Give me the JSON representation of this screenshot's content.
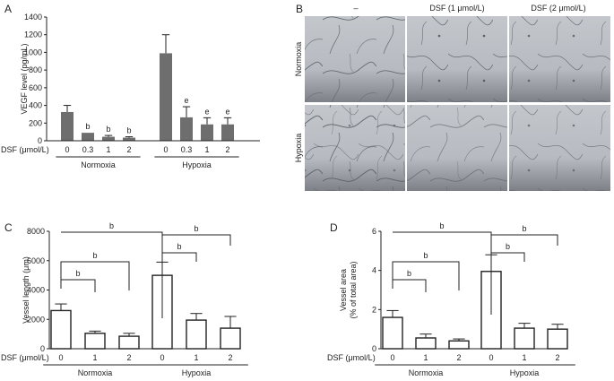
{
  "panels": {
    "A": {
      "letter": "A"
    },
    "B": {
      "letter": "B"
    },
    "C": {
      "letter": "C"
    },
    "D": {
      "letter": "D"
    }
  },
  "micrographs": {
    "columns": [
      "–",
      "DSF (1 μmol/L)",
      "DSF (2 μmol/L)"
    ],
    "rows": [
      "Normoxia",
      "Hypoxia"
    ]
  },
  "chart_data": [
    {
      "id": "A",
      "type": "bar",
      "ylabel": "VEGF level (pg/mL)",
      "ylim": [
        0,
        1400
      ],
      "yticks": [
        0,
        200,
        400,
        600,
        800,
        1000,
        1200,
        1400
      ],
      "x_prefix_label": "DSF (μmol/L)",
      "categories": [
        "0",
        "0.3",
        "1",
        "2",
        "0",
        "0.3",
        "1",
        "2"
      ],
      "groups": [
        "Normoxia",
        "Hypoxia"
      ],
      "values": [
        325,
        90,
        45,
        35,
        990,
        265,
        185,
        185
      ],
      "errors": [
        75,
        0,
        15,
        10,
        210,
        120,
        75,
        75
      ],
      "labels": [
        "",
        "b",
        "b",
        "b",
        "",
        "e",
        "e",
        "e"
      ],
      "bar_color": "#6e6e6e",
      "filled": true
    },
    {
      "id": "C",
      "type": "bar",
      "ylabel": "Vessel length (μm)",
      "ylim": [
        0,
        8000
      ],
      "yticks": [
        0,
        2000,
        4000,
        6000,
        8000
      ],
      "x_prefix_label": "DSF (μmol/L)",
      "categories": [
        "0",
        "1",
        "2",
        "0",
        "1",
        "2"
      ],
      "groups": [
        "Normoxia",
        "Hypoxia"
      ],
      "values": [
        2600,
        1050,
        850,
        5000,
        1950,
        1400
      ],
      "errors": [
        450,
        150,
        200,
        900,
        450,
        800
      ],
      "filled": false,
      "brackets": [
        {
          "from": 0,
          "to": 3,
          "label": "b"
        },
        {
          "from": 0,
          "to": 2,
          "label": "b"
        },
        {
          "from": 0,
          "to": 1,
          "label": "b"
        },
        {
          "from": 3,
          "to": 5,
          "label": "b"
        },
        {
          "from": 3,
          "to": 4,
          "label": "b"
        }
      ]
    },
    {
      "id": "D",
      "type": "bar",
      "ylabel": "Vessel area",
      "ylabel2": "(% of total area)",
      "ylim": [
        0,
        6
      ],
      "yticks": [
        0,
        2,
        4,
        6
      ],
      "x_prefix_label": "DSF (μmol/L)",
      "categories": [
        "0",
        "1",
        "2",
        "0",
        "1",
        "2"
      ],
      "groups": [
        "Normoxia",
        "Hypoxia"
      ],
      "values": [
        1.6,
        0.55,
        0.4,
        3.95,
        1.05,
        1.0
      ],
      "errors": [
        0.35,
        0.2,
        0.1,
        0.85,
        0.25,
        0.25
      ],
      "filled": false,
      "brackets": [
        {
          "from": 0,
          "to": 3,
          "label": "b"
        },
        {
          "from": 0,
          "to": 2,
          "label": "b"
        },
        {
          "from": 0,
          "to": 1,
          "label": "b"
        },
        {
          "from": 3,
          "to": 5,
          "label": "b"
        },
        {
          "from": 3,
          "to": 4,
          "label": "b"
        }
      ]
    }
  ]
}
